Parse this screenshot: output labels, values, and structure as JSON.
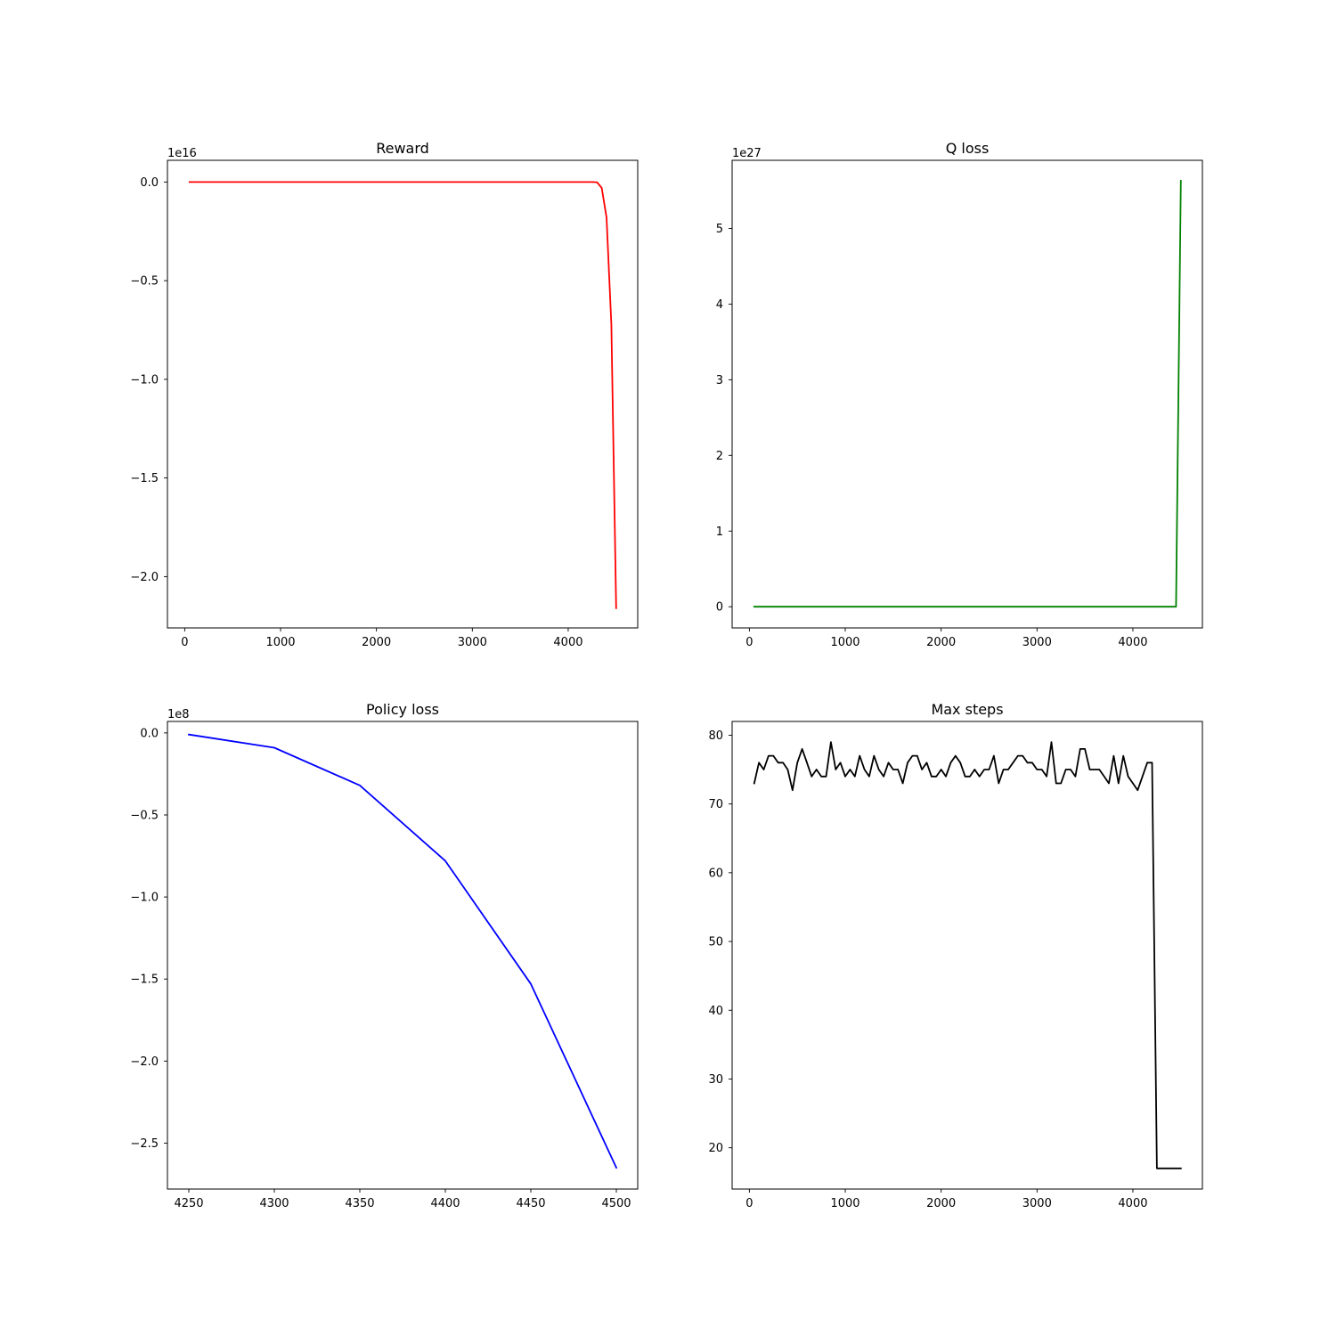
{
  "chart_data": [
    {
      "type": "line",
      "title": "Reward",
      "offset_text": "1e16",
      "color": "#ff0000",
      "xlim": [
        -180,
        4725
      ],
      "ylim": [
        -2.26,
        0.11
      ],
      "xticks": [
        0,
        1000,
        2000,
        3000,
        4000
      ],
      "xtick_labels": [
        "0",
        "1000",
        "2000",
        "3000",
        "4000"
      ],
      "yticks": [
        0.0,
        -0.5,
        -1.0,
        -1.5,
        -2.0
      ],
      "ytick_labels": [
        "0.0",
        "−0.5",
        "−1.0",
        "−1.5",
        "−2.0"
      ],
      "grid": false,
      "series": [
        {
          "x": [
            50,
            4250,
            4300,
            4350,
            4400,
            4450,
            4500
          ],
          "y": [
            0.0,
            0.0,
            -0.001,
            -0.03,
            -0.18,
            -0.72,
            -2.16
          ]
        }
      ]
    },
    {
      "type": "line",
      "title": "Q loss",
      "offset_text": "1e27",
      "color": "#008000",
      "xlim": [
        -180,
        4725
      ],
      "ylim": [
        -0.28,
        5.9
      ],
      "xticks": [
        0,
        1000,
        2000,
        3000,
        4000
      ],
      "xtick_labels": [
        "0",
        "1000",
        "2000",
        "3000",
        "4000"
      ],
      "yticks": [
        0,
        1,
        2,
        3,
        4,
        5
      ],
      "ytick_labels": [
        "0",
        "1",
        "2",
        "3",
        "4",
        "5"
      ],
      "grid": false,
      "series": [
        {
          "x": [
            50,
            4450,
            4500
          ],
          "y": [
            0.0,
            0.0,
            5.63
          ]
        }
      ]
    },
    {
      "type": "line",
      "title": "Policy loss",
      "offset_text": "1e8",
      "color": "#0000ff",
      "xlim": [
        4237.5,
        4512.5
      ],
      "ylim": [
        -2.78,
        0.07
      ],
      "xticks": [
        4250,
        4300,
        4350,
        4400,
        4450,
        4500
      ],
      "xtick_labels": [
        "4250",
        "4300",
        "4350",
        "4400",
        "4450",
        "4500"
      ],
      "yticks": [
        0.0,
        -0.5,
        -1.0,
        -1.5,
        -2.0,
        -2.5
      ],
      "ytick_labels": [
        "0.0",
        "−0.5",
        "−1.0",
        "−1.5",
        "−2.0",
        "−2.5"
      ],
      "grid": false,
      "series": [
        {
          "x": [
            4250,
            4300,
            4350,
            4400,
            4450,
            4500
          ],
          "y": [
            -0.01,
            -0.09,
            -0.32,
            -0.78,
            -1.53,
            -2.65
          ]
        }
      ]
    },
    {
      "type": "line",
      "title": "Max steps",
      "color": "#000000",
      "xlim": [
        -180,
        4725
      ],
      "ylim": [
        14.0,
        82.0
      ],
      "xticks": [
        0,
        1000,
        2000,
        3000,
        4000
      ],
      "xtick_labels": [
        "0",
        "1000",
        "2000",
        "3000",
        "4000"
      ],
      "yticks": [
        20,
        30,
        40,
        50,
        60,
        70,
        80
      ],
      "ytick_labels": [
        "20",
        "30",
        "40",
        "50",
        "60",
        "70",
        "80"
      ],
      "grid": false,
      "series": [
        {
          "x": [
            50,
            100,
            150,
            200,
            250,
            300,
            350,
            400,
            450,
            500,
            550,
            600,
            650,
            700,
            750,
            800,
            850,
            900,
            950,
            1000,
            1050,
            1100,
            1150,
            1200,
            1250,
            1300,
            1350,
            1400,
            1450,
            1500,
            1550,
            1600,
            1650,
            1700,
            1750,
            1800,
            1850,
            1900,
            1950,
            2000,
            2050,
            2100,
            2150,
            2200,
            2250,
            2300,
            2350,
            2400,
            2450,
            2500,
            2550,
            2600,
            2650,
            2700,
            2750,
            2800,
            2850,
            2900,
            2950,
            3000,
            3050,
            3100,
            3150,
            3200,
            3250,
            3300,
            3350,
            3400,
            3450,
            3500,
            3550,
            3600,
            3650,
            3700,
            3750,
            3800,
            3850,
            3900,
            3950,
            4000,
            4050,
            4100,
            4150,
            4200,
            4250,
            4300,
            4350,
            4400,
            4450,
            4500
          ],
          "y": [
            73,
            76,
            75,
            77,
            77,
            76,
            76,
            75,
            72,
            76,
            78,
            76,
            74,
            75,
            74,
            74,
            79,
            75,
            76,
            74,
            75,
            74,
            77,
            75,
            74,
            77,
            75,
            74,
            76,
            75,
            75,
            73,
            76,
            77,
            77,
            75,
            76,
            74,
            74,
            75,
            74,
            76,
            77,
            76,
            74,
            74,
            75,
            74,
            75,
            75,
            77,
            73,
            75,
            75,
            76,
            77,
            77,
            76,
            76,
            75,
            75,
            74,
            79,
            73,
            73,
            75,
            75,
            74,
            78,
            78,
            75,
            75,
            75,
            74,
            73,
            77,
            73,
            77,
            74,
            73,
            72,
            74,
            76,
            76,
            17,
            17,
            17,
            17,
            17,
            17
          ]
        }
      ]
    }
  ]
}
